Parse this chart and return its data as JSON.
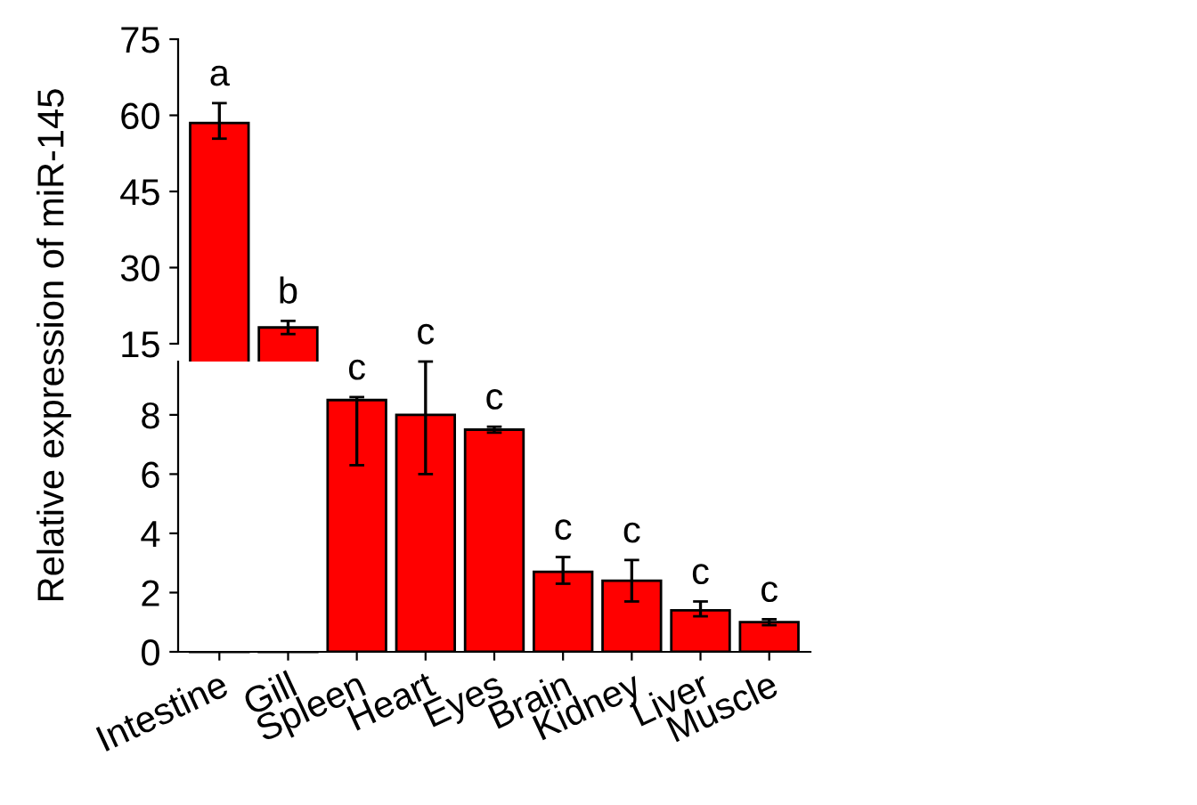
{
  "chart_data": [
    {
      "type": "bar",
      "categories": [
        null,
        null,
        null,
        null,
        null,
        null,
        null,
        null,
        null
      ],
      "values": [
        58.5,
        18.2,
        null,
        null,
        null,
        null,
        null,
        null,
        null
      ],
      "errors": [
        [
          55.4,
          62.4
        ],
        [
          16.9,
          19.5
        ],
        null,
        null,
        null,
        null,
        null,
        null,
        null
      ],
      "color": "#ff0000",
      "ylim": [
        15,
        75
      ],
      "yticks": [
        15,
        30,
        45,
        60,
        75
      ],
      "ylabel": "Relative expression of miR-145",
      "tick_labels": "y",
      "annotations": [
        "a",
        "b",
        "c",
        "c",
        "c"
      ]
    },
    {
      "type": "bar",
      "categories": [
        "Intestine",
        "Gill",
        "Spleen",
        "Heart",
        "Eyes",
        "Brain",
        "Kidney",
        "Liver",
        "Muscle"
      ],
      "values": [
        null,
        null,
        8.5,
        8.0,
        7.5,
        2.7,
        2.4,
        1.4,
        1.0
      ],
      "errors": [
        null,
        null,
        [
          6.3,
          8.6
        ],
        [
          6.0,
          9.8
        ],
        [
          7.4,
          7.6
        ],
        [
          2.3,
          3.2
        ],
        [
          1.7,
          3.1
        ],
        [
          1.2,
          1.7
        ],
        [
          0.9,
          1.1
        ]
      ],
      "color": "#ff0000",
      "ylim": [
        0,
        9.8
      ],
      "yticks": [
        0,
        2,
        4,
        6,
        8
      ],
      "annotations": [
        "c",
        "c",
        "c",
        "c"
      ]
    }
  ]
}
